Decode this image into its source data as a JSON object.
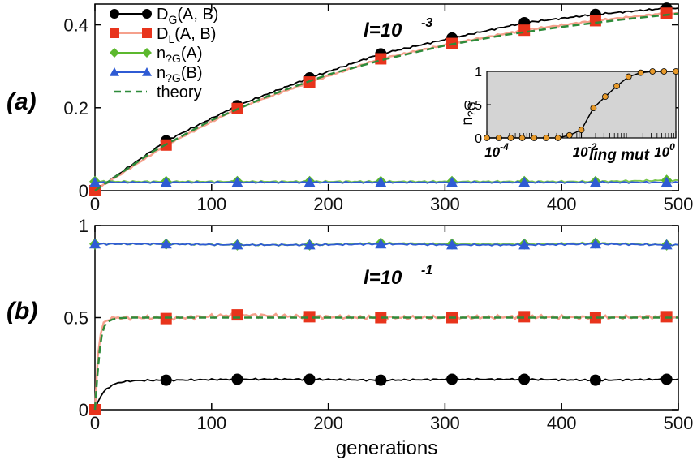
{
  "chart_data": [
    {
      "panel": "(a)",
      "type": "line",
      "annotation": "l=10^-3",
      "annotation_base": "l=10",
      "annotation_exp": "-3",
      "xlim": [
        0,
        500
      ],
      "ylim": [
        0,
        0.45
      ],
      "xticks": [
        "0",
        "100",
        "200",
        "300",
        "400",
        "500"
      ],
      "yticks": [
        "0",
        "0.2",
        "0.4"
      ],
      "ytick_values": [
        0,
        0.2,
        0.4
      ],
      "legend_placement": "top-left",
      "legend": [
        {
          "label_main": "D",
          "label_sub": "G",
          "label_rest": "(A, B)",
          "color": "#000000",
          "marker": "circle"
        },
        {
          "label_main": "D",
          "label_sub": "L",
          "label_rest": "(A, B)",
          "color": "#e8341c",
          "marker": "square"
        },
        {
          "label_main": "n",
          "label_sub": "?G",
          "label_rest": "(A)",
          "color": "#5cb82e",
          "marker": "diamond"
        },
        {
          "label_main": "n",
          "label_sub": "?G",
          "label_rest": "(B)",
          "color": "#2f5bd4",
          "marker": "triangle"
        },
        {
          "label_main": "theory",
          "label_sub": "",
          "label_rest": "",
          "color": "#2e8b3a",
          "marker": "dash"
        }
      ],
      "series": [
        {
          "name": "DG(A, B)",
          "color": "#000000",
          "marker": "circle",
          "x": [
            0,
            61,
            122,
            184,
            245,
            306,
            368,
            429,
            490
          ],
          "y": [
            0.0,
            0.12,
            0.205,
            0.272,
            0.33,
            0.368,
            0.405,
            0.425,
            0.44
          ]
        },
        {
          "name": "DL(A, B)",
          "color": "#e8341c",
          "marker": "square",
          "x": [
            0,
            61,
            122,
            184,
            245,
            306,
            368,
            429,
            490
          ],
          "y": [
            0.0,
            0.11,
            0.198,
            0.262,
            0.318,
            0.355,
            0.387,
            0.41,
            0.428
          ]
        },
        {
          "name": "n?G(A)",
          "color": "#5cb82e",
          "marker": "diamond",
          "x": [
            0,
            61,
            122,
            184,
            245,
            306,
            368,
            429,
            490
          ],
          "y": [
            0.022,
            0.022,
            0.022,
            0.022,
            0.022,
            0.022,
            0.022,
            0.022,
            0.025
          ]
        },
        {
          "name": "n?G(B)",
          "color": "#2f5bd4",
          "marker": "triangle",
          "x": [
            0,
            61,
            122,
            184,
            245,
            306,
            368,
            429,
            490
          ],
          "y": [
            0.02,
            0.02,
            0.02,
            0.02,
            0.02,
            0.02,
            0.02,
            0.02,
            0.02
          ]
        },
        {
          "name": "theory",
          "color": "#2e8b3a",
          "marker": "dash",
          "x": [
            0,
            50,
            100,
            150,
            200,
            250,
            300,
            350,
            400,
            450,
            500
          ],
          "y": [
            0.0,
            0.095,
            0.17,
            0.23,
            0.28,
            0.318,
            0.35,
            0.375,
            0.395,
            0.412,
            0.427
          ]
        }
      ],
      "inset": {
        "ylabel_main": "n",
        "ylabel_sub": "?G",
        "xlabel": "ling mut",
        "xscale": "log",
        "xlim": [
          0.0001,
          1
        ],
        "ylim": [
          0,
          1
        ],
        "yticks": [
          "0",
          "0.5",
          "1"
        ],
        "xticks": [
          {
            "base": "10",
            "exp": "-4"
          },
          {
            "base": "10",
            "exp": "-2"
          },
          {
            "base": "10",
            "exp": "0"
          }
        ],
        "background": "#d4d4d4",
        "color": "#e89a2a",
        "x": [
          0.0001,
          0.00018,
          0.00032,
          0.00056,
          0.001,
          0.0018,
          0.0032,
          0.0056,
          0.01,
          0.018,
          0.032,
          0.056,
          0.1,
          0.18,
          0.32,
          0.56,
          1.0
        ],
        "y": [
          0,
          0,
          0,
          0,
          0,
          0,
          0,
          0.04,
          0.12,
          0.45,
          0.62,
          0.78,
          0.92,
          0.98,
          1.0,
          1.0,
          1.0
        ]
      }
    },
    {
      "panel": "(b)",
      "type": "line",
      "annotation": "l=10^-1",
      "annotation_base": "l=10",
      "annotation_exp": "-1",
      "xlim": [
        0,
        500
      ],
      "ylim": [
        0,
        1.0
      ],
      "xticks": [
        "0",
        "100",
        "200",
        "300",
        "400",
        "500"
      ],
      "yticks": [
        "0",
        "0.5",
        "1"
      ],
      "ytick_values": [
        0,
        0.5,
        1
      ],
      "xlabel": "generations",
      "series": [
        {
          "name": "DG(A, B)",
          "color": "#000000",
          "marker": "circle",
          "x": [
            0,
            61,
            122,
            184,
            245,
            306,
            368,
            429,
            490
          ],
          "y": [
            0.0,
            0.16,
            0.165,
            0.165,
            0.16,
            0.165,
            0.165,
            0.16,
            0.165
          ]
        },
        {
          "name": "DL(A, B)",
          "color": "#e8341c",
          "marker": "square",
          "x": [
            0,
            61,
            122,
            184,
            245,
            306,
            368,
            429,
            490
          ],
          "y": [
            0.0,
            0.495,
            0.515,
            0.505,
            0.5,
            0.5,
            0.505,
            0.5,
            0.505
          ]
        },
        {
          "name": "n?G(A)",
          "color": "#5cb82e",
          "marker": "diamond",
          "x": [
            0,
            61,
            122,
            184,
            245,
            306,
            368,
            429,
            490
          ],
          "y": [
            0.9,
            0.9,
            0.895,
            0.895,
            0.905,
            0.9,
            0.9,
            0.905,
            0.895
          ]
        },
        {
          "name": "n?G(B)",
          "color": "#2f5bd4",
          "marker": "triangle",
          "x": [
            0,
            61,
            122,
            184,
            245,
            306,
            368,
            429,
            490
          ],
          "y": [
            0.9,
            0.9,
            0.895,
            0.895,
            0.9,
            0.895,
            0.895,
            0.9,
            0.895
          ]
        },
        {
          "name": "theory",
          "color": "#2e8b3a",
          "marker": "dash",
          "x": [
            0,
            2,
            4,
            6,
            8,
            10,
            15,
            20,
            30,
            50,
            100,
            200,
            300,
            400,
            500
          ],
          "y": [
            0.0,
            0.18,
            0.32,
            0.41,
            0.45,
            0.475,
            0.49,
            0.497,
            0.5,
            0.5,
            0.5,
            0.5,
            0.5,
            0.5,
            0.5
          ]
        }
      ]
    }
  ]
}
